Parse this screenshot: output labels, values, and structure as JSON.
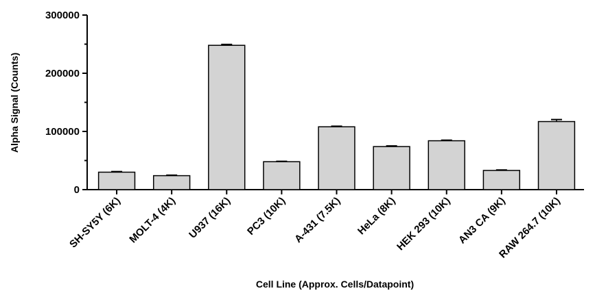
{
  "chart_data": {
    "type": "bar",
    "title": "",
    "xlabel": "Cell Line (Approx. Cells/Datapoint)",
    "ylabel": "Alpha Signal (Counts)",
    "ylim": [
      0,
      300000
    ],
    "yticks": [
      "0",
      "100000",
      "200000",
      "300000"
    ],
    "categories": [
      "SH-SY5Y (6K)",
      "MOLT-4 (4K)",
      "U937 (16K)",
      "PC3 (10K)",
      "A-431 (7.5K)",
      "HeLa (8K)",
      "HEK 293 (10K)",
      "AN3 CA (9K)",
      "RAW 264.7 (10K)"
    ],
    "values": [
      30000,
      24000,
      248000,
      48000,
      108000,
      74000,
      84000,
      33000,
      117000
    ],
    "errors": [
      1000,
      900,
      1500,
      700,
      1000,
      1200,
      1000,
      800,
      3500
    ],
    "bar_color": "#d3d3d3",
    "grid": false
  }
}
